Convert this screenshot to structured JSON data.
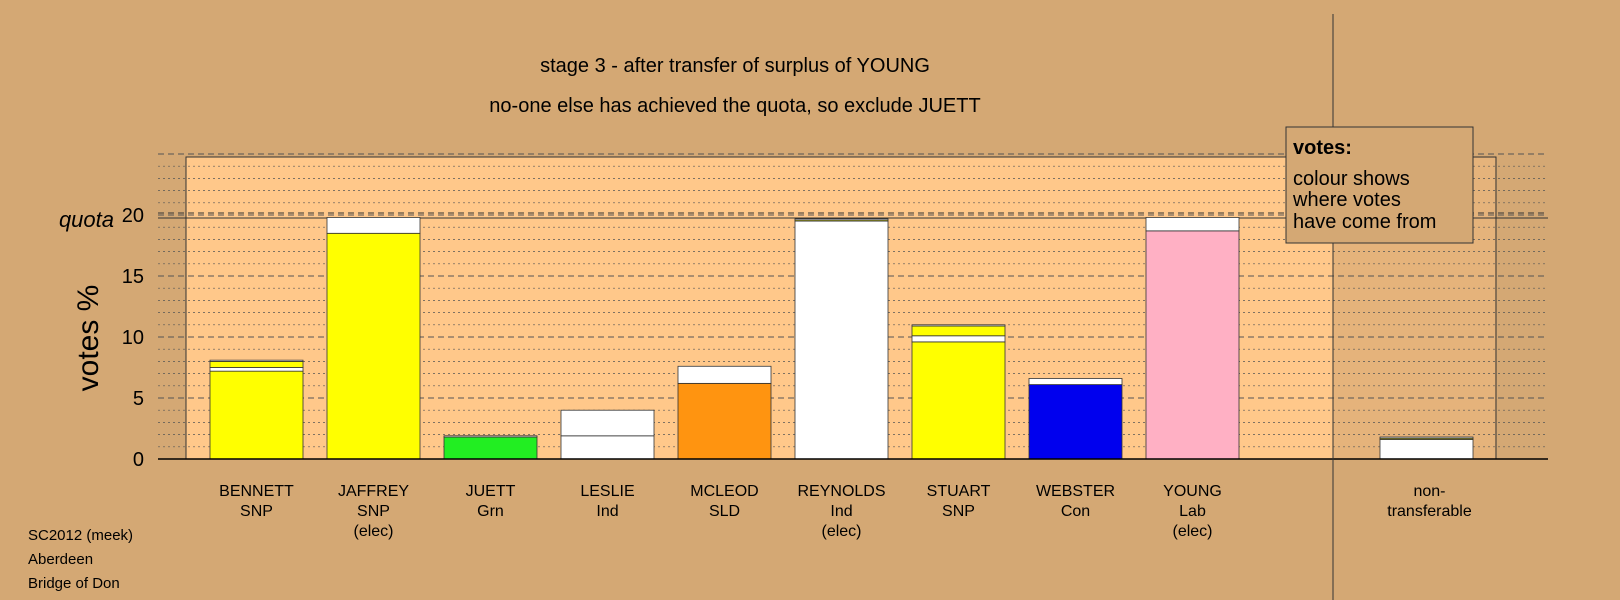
{
  "chart_data": {
    "type": "bar",
    "title": "stage 3 - after transfer of surplus of YOUNG",
    "subtitle": "no-one else has achieved the quota, so exclude JUETT",
    "ylabel": "votes %",
    "quota_label": "quota",
    "quota": 20,
    "ylim": [
      0,
      25
    ],
    "yticks": [
      0,
      5,
      10,
      15,
      20
    ],
    "grid": "dashed major every 5, dotted minor every 1",
    "candidates": [
      {
        "name": "BENNETT",
        "party": "SNP",
        "status": "",
        "segments": [
          {
            "color": "#ffff00",
            "value": 7.2
          },
          {
            "color": "#ffffff",
            "value": 0.3
          },
          {
            "color": "#ffff00",
            "value": 0.5
          },
          {
            "color": "#ffffff",
            "value": 0.1
          }
        ]
      },
      {
        "name": "JAFFREY",
        "party": "SNP",
        "status": "(elec)",
        "segments": [
          {
            "color": "#ffff00",
            "value": 18.5
          },
          {
            "color": "#ffffff",
            "value": 1.3
          }
        ]
      },
      {
        "name": "JUETT",
        "party": "Grn",
        "status": "",
        "segments": [
          {
            "color": "#22ee22",
            "value": 1.8
          },
          {
            "color": "#ffffff",
            "value": 0.1
          }
        ]
      },
      {
        "name": "LESLIE",
        "party": "Ind",
        "status": "",
        "segments": [
          {
            "color": "#ffffff",
            "value": 1.9
          },
          {
            "color": "#ffffff",
            "value": 2.1
          }
        ]
      },
      {
        "name": "MCLEOD",
        "party": "SLD",
        "status": "",
        "segments": [
          {
            "color": "#ff9410",
            "value": 6.2
          },
          {
            "color": "#ffffff",
            "value": 1.4
          }
        ]
      },
      {
        "name": "REYNOLDS",
        "party": "Ind",
        "status": "(elec)",
        "segments": [
          {
            "color": "#ffffff",
            "value": 19.5
          },
          {
            "color": "#ffff00",
            "value": 0.1
          },
          {
            "color": "#ffffff",
            "value": 0.1
          }
        ]
      },
      {
        "name": "STUART",
        "party": "SNP",
        "status": "",
        "segments": [
          {
            "color": "#ffff00",
            "value": 9.6
          },
          {
            "color": "#ffffff",
            "value": 0.5
          },
          {
            "color": "#ffff00",
            "value": 0.8
          },
          {
            "color": "#ffffff",
            "value": 0.1
          }
        ]
      },
      {
        "name": "WEBSTER",
        "party": "Con",
        "status": "",
        "segments": [
          {
            "color": "#0000ee",
            "value": 6.1
          },
          {
            "color": "#ffffff",
            "value": 0.5
          }
        ]
      },
      {
        "name": "YOUNG",
        "party": "Lab",
        "status": "(elec)",
        "segments": [
          {
            "color": "#ffb0c4",
            "value": 18.7
          },
          {
            "color": "#ffffff",
            "value": 1.1
          }
        ]
      }
    ],
    "nontransferable": {
      "label_line1": "non-",
      "label_line2": "transferable",
      "segments": [
        {
          "color": "#ffffff",
          "value": 1.6
        },
        {
          "color": "#ffff00",
          "value": 0.1
        },
        {
          "color": "#ffffff",
          "value": 0.1
        }
      ]
    },
    "legend": {
      "placement": "top-right",
      "title": "votes:",
      "lines": [
        "colour shows",
        "where votes",
        "have come from"
      ]
    }
  },
  "footer": {
    "line1": "SC2012 (meek)",
    "line2": "Aberdeen",
    "line3": "Bridge of Don"
  },
  "colors": {
    "background": "#d4a874",
    "plot_area": "#ffc88a"
  }
}
